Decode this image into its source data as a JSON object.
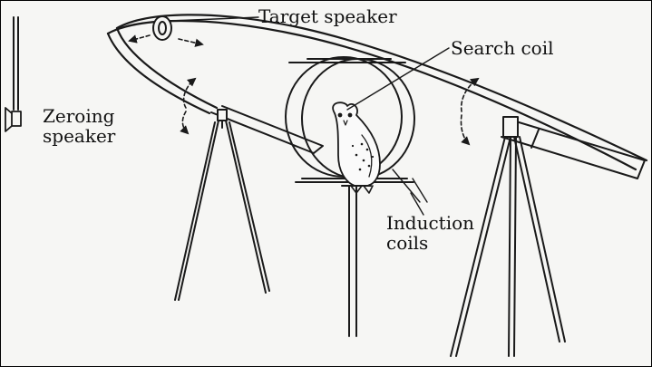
{
  "labels": {
    "target_speaker": "Target speaker",
    "search_coil": "Search coil",
    "zeroing_speaker": [
      "Zeroing",
      "speaker"
    ],
    "induction_coils": [
      "Induction",
      "coils"
    ]
  },
  "colors": {
    "ink": "#1a1a1a",
    "paper": "#f6f6f4",
    "frame": "#000000"
  },
  "icons": [
    "speaker-icon",
    "owl-icon",
    "arrow-icon"
  ]
}
